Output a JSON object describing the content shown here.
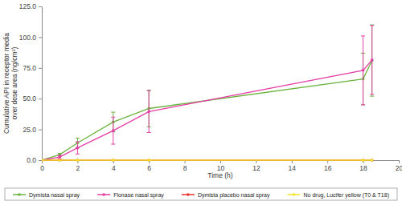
{
  "chart_data": {
    "type": "line",
    "x_label": "Time (h)",
    "y_label": [
      "Cumulative API in receptor media",
      "over dose area (ng/cm²)"
    ],
    "xlim": [
      0,
      20
    ],
    "xticks": [
      0,
      2,
      4,
      6,
      8,
      10,
      12,
      14,
      16,
      18,
      20
    ],
    "ylim": [
      0,
      125
    ],
    "yticks": [
      {
        "value": 0,
        "label": "0.0"
      },
      {
        "value": 25,
        "label": "25.0"
      },
      {
        "value": 50,
        "label": "50.0"
      },
      {
        "value": 75,
        "label": "75.0"
      },
      {
        "value": 100,
        "label": "100.0"
      },
      {
        "value": 125,
        "label": "125.0"
      }
    ],
    "grid": false,
    "legend": "bottom",
    "marker": "circle",
    "x": [
      0,
      1,
      2,
      4,
      6,
      18,
      18.5
    ],
    "series": [
      {
        "name": "Dymista nasal spray",
        "color": "#6cb33f",
        "values": [
          0,
          4.5,
          14,
          31,
          42,
          66,
          81
        ],
        "errors": [
          0,
          1,
          4,
          8,
          15,
          21,
          29
        ]
      },
      {
        "name": "Flonase nasal spray",
        "color": "#e43fa6",
        "values": [
          0,
          2.5,
          10,
          24,
          39.5,
          73,
          81.5
        ],
        "errors": [
          0,
          1.5,
          5,
          11,
          17,
          28,
          28
        ]
      },
      {
        "name": "Dymista placebo nasal spray",
        "color": "#e8322e",
        "values": [
          0,
          0,
          0,
          0,
          0,
          0,
          0
        ]
      },
      {
        "name": "No drug, Lucifer yellow (T0 & T18)",
        "color": "#f2e22a",
        "values": [
          0,
          0,
          0,
          0,
          0,
          0,
          0
        ]
      }
    ]
  }
}
